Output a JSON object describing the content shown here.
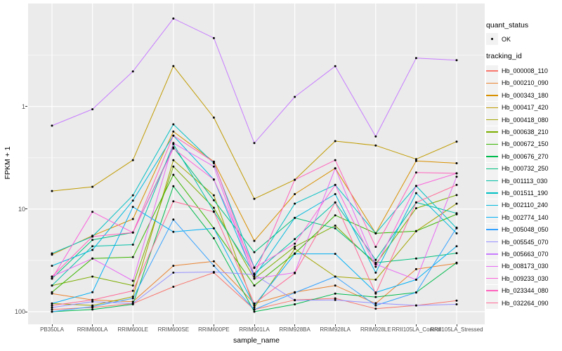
{
  "chart_data": {
    "type": "line",
    "title": "",
    "xlabel": "sample_name",
    "ylabel": "FPKM + 1",
    "y_scale": "log10",
    "ylim": [
      0.75,
      1000
    ],
    "grid": true,
    "legend_position": "right",
    "panel_bg": "#EBEBEB",
    "grid_color": "#FFFFFF",
    "axis_text_color": "#4d4d4d",
    "point_color": "#000000",
    "y_tick_labels": [
      "100",
      "10",
      "1"
    ],
    "y_ticks_values": [
      100,
      10,
      1
    ],
    "y_minor_values": [
      3.162,
      31.62,
      316.2
    ],
    "categories": [
      "PB350LA",
      "RRIM600LA",
      "RRIM600LE",
      "RRIM600SE",
      "RRIM600PE",
      "RRIM901LA",
      "RRIM928BA",
      "RRIM928LA",
      "RRIM928LE",
      "RRII105LA_Control",
      "RRII105LA_Stressed"
    ],
    "legend_quant_title": "quant_status",
    "legend_quant_items": [
      "OK"
    ],
    "legend_tracking_title": "tracking_id",
    "series": [
      {
        "tracking_id": "Hb_000008_110",
        "color": "#F8766D",
        "values": [
          1.05,
          1.1,
          1.2,
          1.75,
          2.4,
          1.05,
          1.3,
          1.35,
          1.07,
          1.15,
          1.28
        ]
      },
      {
        "tracking_id": "Hb_000210_090",
        "color": "#EA8331",
        "values": [
          1.5,
          1.3,
          1.25,
          2.8,
          3.1,
          1.2,
          1.55,
          1.8,
          1.2,
          2.6,
          2.96
        ]
      },
      {
        "tracking_id": "Hb_000343_180",
        "color": "#D89000",
        "values": [
          3.6,
          5.5,
          8.0,
          57,
          29,
          4.9,
          14,
          25,
          5.8,
          29.5,
          28
        ]
      },
      {
        "tracking_id": "Hb_000417_420",
        "color": "#C09B00",
        "values": [
          15,
          16.5,
          30,
          248,
          78,
          12.6,
          19.3,
          46,
          41.7,
          30.7,
          45.5
        ]
      },
      {
        "tracking_id": "Hb_000418_080",
        "color": "#A3A500",
        "values": [
          1.2,
          1.15,
          1.4,
          30,
          13.6,
          1.1,
          4.1,
          2.2,
          2.05,
          6.1,
          11.3
        ]
      },
      {
        "tracking_id": "Hb_000638_210",
        "color": "#7CAE00",
        "values": [
          1.8,
          2.2,
          1.8,
          26,
          10.3,
          2.1,
          4.3,
          6.9,
          2.9,
          10.2,
          13.7
        ]
      },
      {
        "tracking_id": "Hb_000672_150",
        "color": "#39B600",
        "values": [
          1.55,
          3.3,
          3.4,
          21.6,
          6.5,
          1.8,
          3.7,
          8.7,
          5.8,
          6.1,
          8.9
        ]
      },
      {
        "tracking_id": "Hb_000676_270",
        "color": "#00BB4E",
        "values": [
          1.0,
          1.05,
          1.18,
          16.7,
          5.2,
          1.0,
          1.18,
          1.5,
          1.39,
          1.54,
          3.0
        ]
      },
      {
        "tracking_id": "Hb_000732_250",
        "color": "#00BF7D",
        "values": [
          2.1,
          5.0,
          5.9,
          40,
          12.2,
          3.8,
          8.2,
          6.5,
          3.0,
          3.3,
          3.72
        ]
      },
      {
        "tracking_id": "Hb_001113_030",
        "color": "#00C1A7",
        "values": [
          1.8,
          4.35,
          4.5,
          43,
          9.5,
          2.35,
          5.1,
          11.6,
          3.2,
          11.6,
          9.1
        ]
      },
      {
        "tracking_id": "Hb_001511_190",
        "color": "#00BFC4",
        "values": [
          3.7,
          5.4,
          13.6,
          67,
          28,
          2.7,
          11.3,
          17.2,
          5.8,
          16.8,
          6.5
        ]
      },
      {
        "tracking_id": "Hb_002110_240",
        "color": "#00BADE",
        "values": [
          2.8,
          4.0,
          12.1,
          52,
          19.4,
          2.2,
          8.2,
          14,
          2.4,
          14.3,
          5.8
        ]
      },
      {
        "tracking_id": "Hb_002774_140",
        "color": "#00B0F6",
        "values": [
          1.2,
          1.55,
          10.5,
          6.0,
          6.5,
          1.15,
          3.66,
          3.66,
          1.54,
          2.05,
          4.35
        ]
      },
      {
        "tracking_id": "Hb_005048_050",
        "color": "#35A2FF",
        "values": [
          1.0,
          1.12,
          1.35,
          7.9,
          2.8,
          1.05,
          1.53,
          2.2,
          1.15,
          1.54,
          6.6
        ]
      },
      {
        "tracking_id": "Hb_005545_070",
        "color": "#9590FF",
        "values": [
          1.1,
          1.25,
          1.2,
          2.4,
          2.44,
          2.3,
          1.29,
          1.3,
          1.21,
          1.15,
          1.18
        ]
      },
      {
        "tracking_id": "Hb_005663_070",
        "color": "#C77CFF",
        "values": [
          65,
          94,
          220,
          720,
          465,
          44,
          124,
          247,
          51,
          296,
          283
        ]
      },
      {
        "tracking_id": "Hb_008173_030",
        "color": "#E76BF3",
        "values": [
          2.2,
          3.3,
          2.0,
          44,
          26,
          2.1,
          2.4,
          25,
          2.9,
          2.05,
          20.7
        ]
      },
      {
        "tracking_id": "Hb_009233_030",
        "color": "#FA62DB",
        "values": [
          2.1,
          9.4,
          5.9,
          39,
          19.4,
          2.67,
          4.6,
          17.2,
          2.74,
          16.8,
          22.3
        ]
      },
      {
        "tracking_id": "Hb_023344_080",
        "color": "#FF62BC",
        "values": [
          2.2,
          5.4,
          5.9,
          52,
          28.8,
          2.3,
          19.3,
          30,
          4.29,
          22.7,
          22.3
        ]
      },
      {
        "tracking_id": "Hb_032264_090",
        "color": "#FF6A98",
        "values": [
          1.15,
          1.3,
          1.6,
          11.9,
          9.4,
          1.2,
          2.37,
          11.6,
          1.5,
          11.6,
          17.2
        ]
      }
    ]
  }
}
